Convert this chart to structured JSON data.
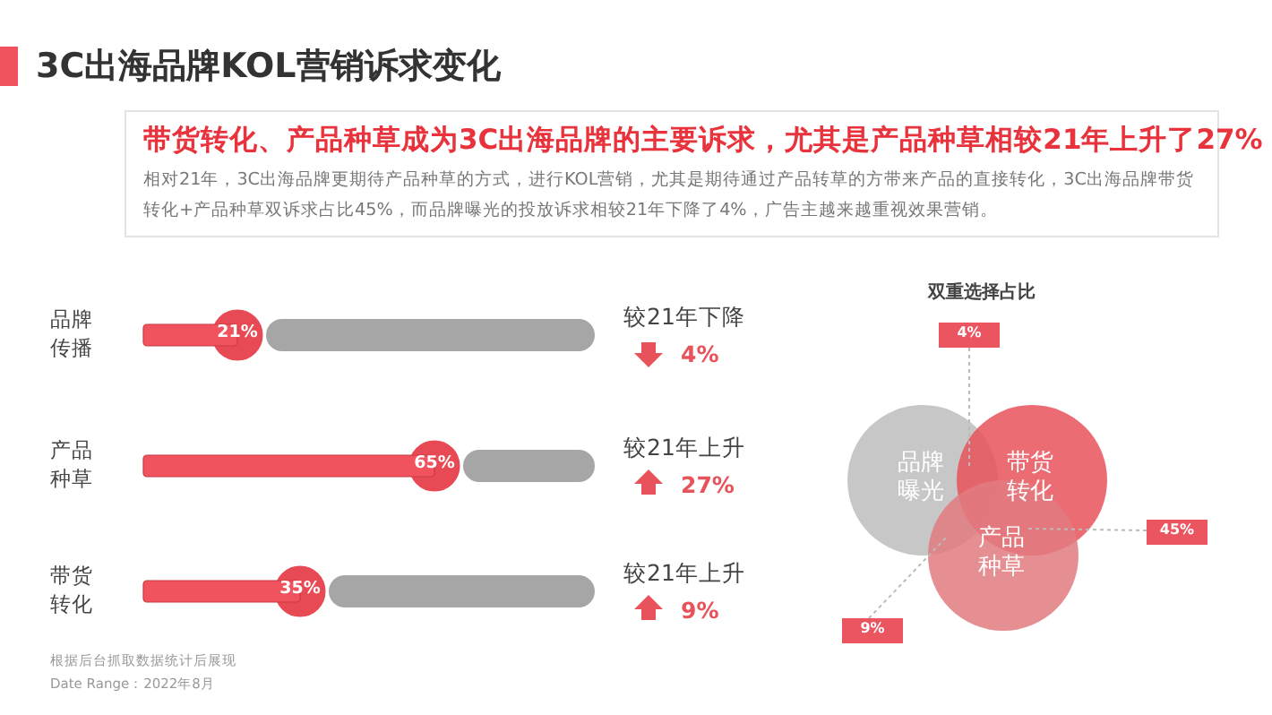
{
  "chart_data": [
    {
      "type": "bar",
      "orientation": "horizontal",
      "title": "3C出海品牌KOL营销诉求变化",
      "subtitle": "带货转化、产品种草成为3C出海品牌的主要诉求，尤其是产品种草相较21年上升了27%",
      "categories": [
        "品牌传播",
        "产品种草",
        "带货转化"
      ],
      "values": [
        21,
        65,
        35
      ],
      "value_labels": [
        "21%",
        "65%",
        "35%"
      ],
      "color": "#f0535e",
      "tick_labels": "y",
      "annotations": [
        "相对21年，3C出海品牌更期待产品种草的方式，进行KOL营销，尤其是期待通过产品转草的方带来产品的直接转化，3C出海品牌带货转化+产品种草双诉求占比45%，而品牌曝光的投放诉求相较21年下降了4%，广告主越来越重视效果营销。",
        "较21年下降",
        "4%",
        "较21年上升",
        "27%",
        "较21年上升",
        "9%",
        "根据后台抓取数据统计后展现",
        "Date Range：2022年8月"
      ]
    },
    {
      "type": "other",
      "title": "双重选择占比",
      "categories": [
        "品牌曝光",
        "带货转化",
        "产品种草"
      ],
      "colors": [
        "#bdbdbd",
        "#e8525b",
        "#e27b80"
      ],
      "annotations": [
        "4%",
        "45%",
        "9%"
      ]
    }
  ]
}
